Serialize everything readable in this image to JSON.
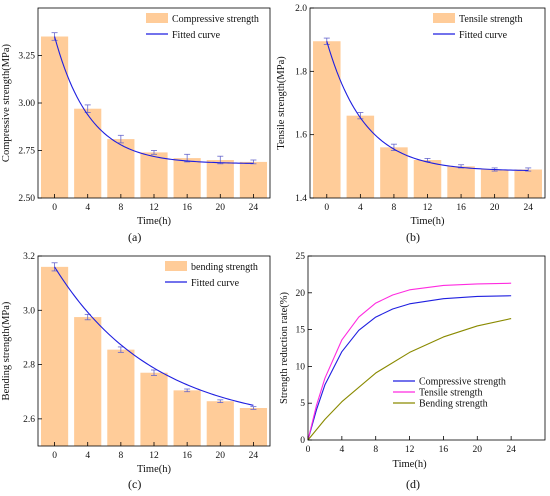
{
  "colors": {
    "bar": "#FFCC99",
    "fit": "#1F1FE0",
    "error": "#6666CC",
    "frame": "#000000",
    "compressive": "#1F1FE0",
    "tensile": "#FF2BE0",
    "bending": "#8A8A00"
  },
  "panels": [
    {
      "label": "(a)"
    },
    {
      "label": "(b)"
    },
    {
      "label": "(c)"
    },
    {
      "label": "(d)"
    }
  ],
  "chart_data": [
    {
      "type": "bar",
      "panel": "(a)",
      "categories": [
        "0",
        "4",
        "8",
        "12",
        "16",
        "20",
        "24"
      ],
      "x": [
        0,
        4,
        8,
        12,
        16,
        20,
        24
      ],
      "series": [
        {
          "name": "Compressive strength",
          "values": [
            3.35,
            2.97,
            2.81,
            2.74,
            2.71,
            2.7,
            2.69
          ],
          "errors": [
            0.02,
            0.02,
            0.02,
            0.01,
            0.02,
            0.02,
            0.01
          ]
        }
      ],
      "fit": {
        "name": "Fitted curve",
        "a": 0.67,
        "b": 2.68,
        "tau": 4.2
      },
      "xlabel": "Time(h)",
      "ylabel": "Compressive strength(MPa)",
      "ylim": [
        2.5,
        3.5
      ],
      "yticks": [
        "2.50",
        "2.75",
        "3.00",
        "3.25"
      ],
      "legend": "top-right",
      "grid": false
    },
    {
      "type": "bar",
      "panel": "(b)",
      "categories": [
        "0",
        "4",
        "8",
        "12",
        "16",
        "20",
        "24"
      ],
      "x": [
        0,
        4,
        8,
        12,
        16,
        20,
        24
      ],
      "series": [
        {
          "name": "Tensile strength",
          "values": [
            1.895,
            1.66,
            1.56,
            1.52,
            1.5,
            1.49,
            1.49
          ],
          "errors": [
            0.01,
            0.01,
            0.01,
            0.005,
            0.005,
            0.005,
            0.005
          ]
        }
      ],
      "fit": {
        "name": "Fitted curve",
        "a": 0.41,
        "b": 1.485,
        "tau": 4.5
      },
      "xlabel": "Time(h)",
      "ylabel": "Tensile strength(MPa)",
      "ylim": [
        1.4,
        2.0
      ],
      "yticks": [
        "1.4",
        "1.6",
        "1.8",
        "2.0"
      ],
      "legend": "top-right",
      "grid": false
    },
    {
      "type": "bar",
      "panel": "(c)",
      "categories": [
        "0",
        "4",
        "8",
        "12",
        "16",
        "20",
        "24"
      ],
      "x": [
        0,
        4,
        8,
        12,
        16,
        20,
        24
      ],
      "series": [
        {
          "name": "bending strength",
          "values": [
            3.16,
            2.975,
            2.855,
            2.77,
            2.705,
            2.665,
            2.64
          ],
          "errors": [
            0.015,
            0.01,
            0.01,
            0.01,
            0.005,
            0.005,
            0.005
          ]
        }
      ],
      "fit": {
        "name": "Fitted curve",
        "a": 0.59,
        "b": 2.57,
        "tau": 12
      },
      "xlabel": "Time(h)",
      "ylabel": "Bending strength(MPa)",
      "ylim": [
        2.5,
        3.2
      ],
      "yticks": [
        "2.6",
        "2.8",
        "3.0",
        "3.2"
      ],
      "legend": "top-right",
      "grid": false
    },
    {
      "type": "line",
      "panel": "(d)",
      "xlim": [
        0,
        28
      ],
      "ylim": [
        0,
        25
      ],
      "xticks": [
        0,
        4,
        8,
        12,
        16,
        20,
        24
      ],
      "yticks": [
        0,
        5,
        10,
        15,
        20,
        25
      ],
      "series": [
        {
          "name": "Compressive strength",
          "colorKey": "compressive",
          "x": [
            0,
            1,
            2,
            4,
            6,
            8,
            10,
            12,
            16,
            20,
            24
          ],
          "y": [
            0,
            4.1,
            7.5,
            12.0,
            14.9,
            16.7,
            17.8,
            18.5,
            19.2,
            19.5,
            19.6
          ]
        },
        {
          "name": "Tensile strength",
          "colorKey": "tensile",
          "x": [
            0,
            1,
            2,
            4,
            6,
            8,
            10,
            12,
            16,
            20,
            24
          ],
          "y": [
            0,
            4.7,
            8.4,
            13.6,
            16.7,
            18.6,
            19.7,
            20.4,
            21.0,
            21.2,
            21.3
          ]
        },
        {
          "name": "Bending strength",
          "colorKey": "bending",
          "x": [
            0,
            2,
            4,
            8,
            12,
            16,
            20,
            24
          ],
          "y": [
            0,
            2.8,
            5.2,
            9.1,
            11.9,
            14.0,
            15.5,
            16.5
          ]
        }
      ],
      "xlabel": "Time(h)",
      "ylabel": "Strength reduction rate(%)",
      "legend": "bottom-right",
      "grid": false
    }
  ]
}
